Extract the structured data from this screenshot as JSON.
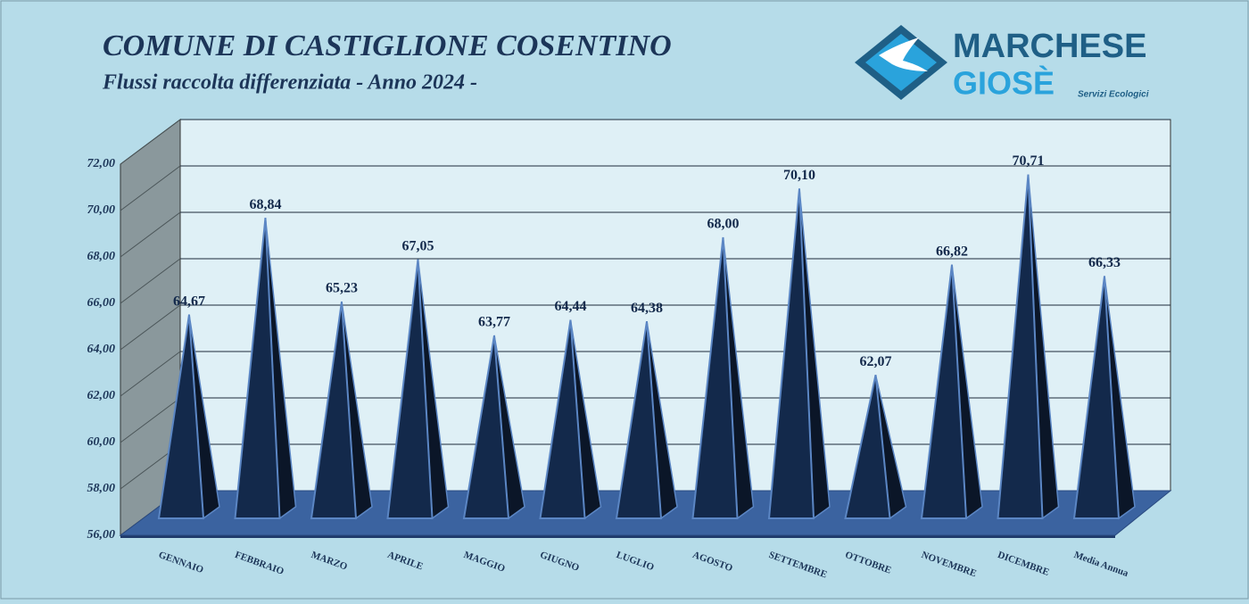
{
  "chart_data": {
    "type": "pyramid",
    "title": "COMUNE DI CASTIGLIONE COSENTINO",
    "subtitle": "Flussi raccolta differenziata - Anno 2024 -",
    "categories": [
      "GENNAIO",
      "FEBBRAIO",
      "MARZO",
      "APRILE",
      "MAGGIO",
      "GIUGNO",
      "LUGLIO",
      "AGOSTO",
      "SETTEMBRE",
      "OTTOBRE",
      "NOVEMBRE",
      "DICEMBRE",
      "Media Annua"
    ],
    "values": [
      64.67,
      68.84,
      65.23,
      67.05,
      63.77,
      64.44,
      64.38,
      68.0,
      70.1,
      62.07,
      66.82,
      70.71,
      66.33
    ],
    "value_labels": [
      "64,67",
      "68,84",
      "65,23",
      "67,05",
      "63,77",
      "64,44",
      "64,38",
      "68,00",
      "70,10",
      "62,07",
      "66,82",
      "70,71",
      "66,33"
    ],
    "color": "#13294b",
    "ylim": [
      56,
      72
    ],
    "yticks": [
      {
        "value": 56,
        "label": "56,00"
      },
      {
        "value": 58,
        "label": "58,00"
      },
      {
        "value": 60,
        "label": "60,00"
      },
      {
        "value": 62,
        "label": "62,00"
      },
      {
        "value": 64,
        "label": "64,00"
      },
      {
        "value": 66,
        "label": "66,00"
      },
      {
        "value": 68,
        "label": "68,00"
      },
      {
        "value": 70,
        "label": "70,00"
      },
      {
        "value": 72,
        "label": "72,00"
      }
    ],
    "grid": true
  },
  "logo": {
    "line1": "MARCHESE",
    "line2": "GIOSÈ",
    "tagline": "Servizi Ecologici"
  }
}
